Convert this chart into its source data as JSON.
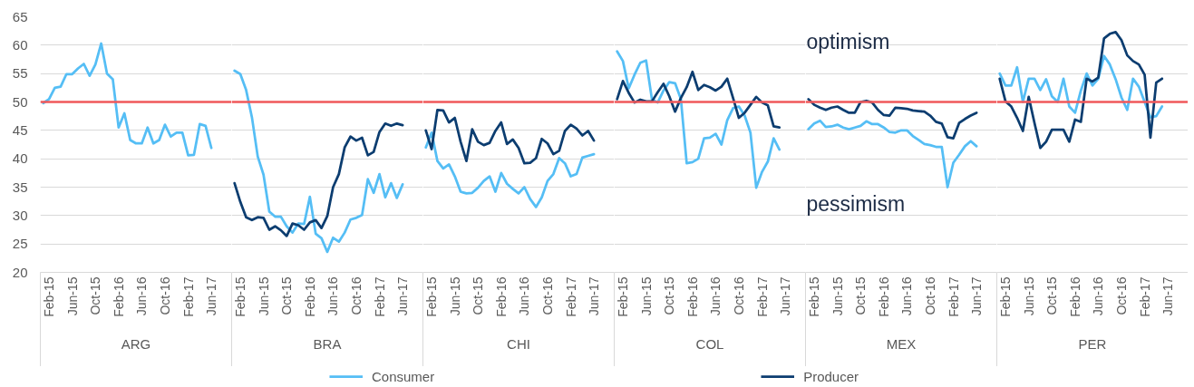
{
  "chart_data": [
    {
      "type": "line",
      "xlabel": "ARG",
      "categories": [
        null,
        "Feb-15",
        null,
        null,
        null,
        "Jun-15",
        null,
        null,
        null,
        "Oct-15",
        null,
        null,
        null,
        "Feb-16",
        null,
        null,
        null,
        "Jun-16",
        null,
        null,
        null,
        "Oct-16",
        null,
        null,
        null,
        "Feb-17",
        null,
        null,
        null,
        "Jun-17",
        null,
        null,
        null
      ],
      "series": [
        {
          "color": "#55bef5",
          "values": [
            49.8,
            50.5,
            52.5,
            52.7,
            54.9,
            54.9,
            55.9,
            56.7,
            54.6,
            56.6,
            60.3,
            55.0,
            54.0,
            45.5,
            48.0,
            43.3,
            42.7,
            42.7,
            45.5,
            42.7,
            43.3,
            46.0,
            43.9,
            44.6,
            44.6,
            40.6,
            40.7,
            46.1,
            45.8,
            41.9,
            null,
            null,
            null
          ]
        }
      ],
      "ylim": [
        20,
        65
      ],
      "yticks": [
        20,
        25,
        30,
        35,
        40,
        45,
        50,
        55,
        60,
        65
      ],
      "grid": "y",
      "ref_lines": [
        {
          "axis": "y",
          "value": 50,
          "color": "#f0585a"
        }
      ]
    },
    {
      "type": "line",
      "xlabel": "BRA",
      "categories": [
        null,
        "Feb-15",
        null,
        null,
        null,
        "Jun-15",
        null,
        null,
        null,
        "Oct-15",
        null,
        null,
        null,
        "Feb-16",
        null,
        null,
        null,
        "Jun-16",
        null,
        null,
        null,
        "Oct-16",
        null,
        null,
        null,
        "Feb-17",
        null,
        null,
        null,
        "Jun-17",
        null,
        null,
        null
      ],
      "series": [
        {
          "name": "Consumer",
          "color": "#55bef5",
          "values": [
            55.5,
            54.9,
            52.1,
            47.3,
            40.4,
            37.2,
            30.7,
            29.8,
            29.8,
            28.1,
            27.0,
            28.6,
            28.5,
            33.3,
            26.8,
            26.0,
            23.6,
            26.1,
            25.4,
            27.0,
            29.3,
            29.6,
            30.1,
            36.4,
            34.0,
            37.3,
            33.2,
            35.7,
            33.1,
            35.5,
            null,
            null,
            null
          ]
        },
        {
          "name": "Producer",
          "color": "#0c3d70",
          "values": [
            35.7,
            32.4,
            29.7,
            29.2,
            29.7,
            29.6,
            27.5,
            28.1,
            27.4,
            26.4,
            28.6,
            28.3,
            27.5,
            28.8,
            29.2,
            27.8,
            29.9,
            35.0,
            37.3,
            42.0,
            43.9,
            43.2,
            43.7,
            40.6,
            41.2,
            44.7,
            46.2,
            45.8,
            46.2,
            45.9,
            null,
            null,
            null
          ]
        }
      ],
      "ylim": [
        20,
        65
      ],
      "yticks": [
        20,
        25,
        30,
        35,
        40,
        45,
        50,
        55,
        60,
        65
      ],
      "grid": "y",
      "tick_labels": "x",
      "legend": "bottom",
      "ref_lines": [
        {
          "axis": "y",
          "value": 50,
          "color": "#f0585a"
        }
      ]
    },
    {
      "type": "line",
      "xlabel": "CHI",
      "categories": [
        null,
        "Feb-15",
        null,
        null,
        null,
        "Jun-15",
        null,
        null,
        null,
        "Oct-15",
        null,
        null,
        null,
        "Feb-16",
        null,
        null,
        null,
        "Jun-16",
        null,
        null,
        null,
        "Oct-16",
        null,
        null,
        null,
        "Feb-17",
        null,
        null,
        null,
        "Jun-17",
        null,
        null,
        null
      ],
      "series": [
        {
          "color": "#55bef5",
          "values": [
            42.0,
            44.6,
            39.6,
            38.3,
            39.0,
            36.9,
            34.2,
            33.9,
            34.0,
            34.9,
            36.1,
            36.9,
            34.2,
            37.5,
            35.6,
            34.7,
            33.9,
            35.0,
            32.9,
            31.5,
            33.2,
            36.1,
            37.3,
            40.1,
            39.2,
            36.9,
            37.3,
            40.2,
            40.5,
            40.8,
            null,
            null,
            null
          ]
        },
        {
          "color": "#0c3d70",
          "values": [
            45.0,
            41.7,
            48.6,
            48.5,
            46.4,
            47.2,
            43.0,
            39.6,
            45.2,
            43.0,
            42.4,
            42.8,
            44.9,
            46.4,
            42.6,
            43.4,
            41.9,
            39.2,
            39.3,
            40.1,
            43.5,
            42.7,
            40.8,
            41.4,
            44.9,
            46.0,
            45.3,
            44.1,
            44.9,
            43.2,
            null,
            null,
            null
          ]
        }
      ],
      "ylim": [
        20,
        65
      ],
      "yticks": [
        20,
        25,
        30,
        35,
        40,
        45,
        50,
        55,
        60,
        65
      ],
      "grid": "y",
      "tick_labels": "x",
      "ref_lines": [
        {
          "axis": "y",
          "value": 50,
          "color": "#f0585a"
        }
      ]
    },
    {
      "type": "line",
      "xlabel": "COL",
      "categories": [
        null,
        "Feb-15",
        null,
        null,
        null,
        "Jun-15",
        null,
        null,
        null,
        "Oct-15",
        null,
        null,
        null,
        "Feb-16",
        null,
        null,
        null,
        "Jun-16",
        null,
        null,
        null,
        "Oct-16",
        null,
        null,
        null,
        "Feb-17",
        null,
        null,
        null,
        "Jun-17",
        null,
        null,
        null
      ],
      "series": [
        {
          "color": "#55bef5",
          "values": [
            58.9,
            57.2,
            52.4,
            54.8,
            56.9,
            57.3,
            50.5,
            49.9,
            52.0,
            53.5,
            53.3,
            50.5,
            39.2,
            39.4,
            40.0,
            43.6,
            43.7,
            44.4,
            42.5,
            46.8,
            48.9,
            49.2,
            47.6,
            44.6,
            34.9,
            37.7,
            39.5,
            43.6,
            41.6,
            null,
            null,
            null,
            null
          ]
        },
        {
          "color": "#0c3d70",
          "values": [
            50.5,
            53.7,
            51.6,
            49.9,
            50.4,
            50.1,
            50.1,
            51.7,
            53.2,
            51.0,
            48.3,
            50.7,
            52.6,
            55.3,
            52.1,
            53.0,
            52.6,
            52.0,
            52.7,
            54.1,
            50.7,
            47.2,
            48.1,
            49.5,
            50.9,
            49.9,
            49.4,
            45.7,
            45.5,
            null,
            null,
            null,
            null
          ]
        }
      ],
      "ylim": [
        20,
        65
      ],
      "yticks": [
        20,
        25,
        30,
        35,
        40,
        45,
        50,
        55,
        60,
        65
      ],
      "grid": "y",
      "tick_labels": "x",
      "ref_lines": [
        {
          "axis": "y",
          "value": 50,
          "color": "#f0585a"
        }
      ]
    },
    {
      "type": "line",
      "xlabel": "MEX",
      "categories": [
        null,
        "Feb-15",
        null,
        null,
        null,
        "Jun-15",
        null,
        null,
        null,
        "Oct-15",
        null,
        null,
        null,
        "Feb-16",
        null,
        null,
        null,
        "Jun-16",
        null,
        null,
        null,
        "Oct-16",
        null,
        null,
        null,
        "Feb-17",
        null,
        null,
        null,
        "Jun-17",
        null,
        null,
        null
      ],
      "series": [
        {
          "color": "#55bef5",
          "values": [
            45.2,
            46.2,
            46.7,
            45.6,
            45.7,
            46.0,
            45.5,
            45.2,
            45.5,
            45.8,
            46.6,
            46.1,
            46.1,
            45.5,
            44.7,
            44.6,
            45.0,
            45.0,
            44.0,
            43.3,
            42.6,
            42.4,
            42.1,
            42.1,
            35.0,
            39.3,
            40.7,
            42.2,
            43.1,
            42.2,
            null,
            null,
            null
          ]
        },
        {
          "color": "#0c3d70",
          "values": [
            50.5,
            49.5,
            49.0,
            48.6,
            49.0,
            49.2,
            48.6,
            48.1,
            48.1,
            50.0,
            50.2,
            49.9,
            48.6,
            47.7,
            47.6,
            49.0,
            48.9,
            48.8,
            48.5,
            48.4,
            48.3,
            47.6,
            46.5,
            46.2,
            43.8,
            43.6,
            46.3,
            47.0,
            47.6,
            48.1,
            null,
            null,
            null
          ]
        }
      ],
      "ylim": [
        20,
        65
      ],
      "yticks": [
        20,
        25,
        30,
        35,
        40,
        45,
        50,
        55,
        60,
        65
      ],
      "grid": "y",
      "tick_labels": "x",
      "ref_lines": [
        {
          "axis": "y",
          "value": 50,
          "color": "#f0585a"
        }
      ],
      "annotations": [
        "optimism",
        "pessimism"
      ]
    },
    {
      "type": "line",
      "xlabel": "PER",
      "categories": [
        null,
        "Feb-15",
        null,
        null,
        null,
        "Jun-15",
        null,
        null,
        null,
        "Oct-15",
        null,
        null,
        null,
        "Feb-16",
        null,
        null,
        null,
        "Jun-16",
        null,
        null,
        null,
        "Oct-16",
        null,
        null,
        null,
        "Feb-17",
        null,
        null,
        null,
        "Jun-17",
        null,
        null,
        null
      ],
      "series": [
        {
          "color": "#55bef5",
          "values": [
            55.0,
            52.9,
            52.9,
            56.1,
            50.0,
            54.1,
            54.1,
            52.1,
            54.0,
            51.0,
            50.0,
            54.1,
            49.2,
            48.1,
            52.0,
            55.0,
            52.9,
            54.1,
            58.1,
            56.6,
            54.0,
            50.8,
            48.6,
            54.1,
            52.7,
            50.0,
            47.3,
            47.5,
            49.2,
            null,
            null,
            null,
            null
          ]
        },
        {
          "color": "#0c3d70",
          "values": [
            54.1,
            50.1,
            49.2,
            47.2,
            44.9,
            50.9,
            46.3,
            41.9,
            43.0,
            45.1,
            45.1,
            45.1,
            43.0,
            46.9,
            46.5,
            54.1,
            53.6,
            54.3,
            61.2,
            62.0,
            62.3,
            60.9,
            58.2,
            57.2,
            56.6,
            54.8,
            43.7,
            53.4,
            54.1,
            null,
            null,
            null,
            null
          ]
        }
      ],
      "ylim": [
        20,
        65
      ],
      "yticks": [
        20,
        25,
        30,
        35,
        40,
        45,
        50,
        55,
        60,
        65
      ],
      "grid": "y",
      "tick_labels": "x",
      "ref_lines": [
        {
          "axis": "y",
          "value": 50,
          "color": "#f0585a"
        }
      ]
    }
  ]
}
